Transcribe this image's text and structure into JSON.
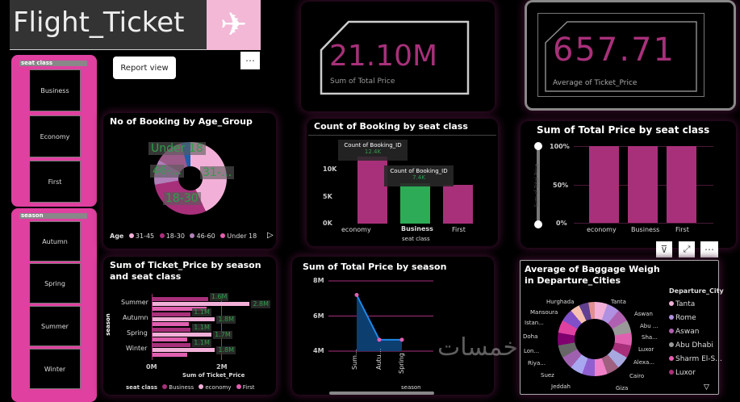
{
  "tooltip": "Report view",
  "title": "Flight_Ticket",
  "slicers": {
    "seat_class": {
      "header": "seat class",
      "items": [
        "Business",
        "Economy",
        "First"
      ]
    },
    "season": {
      "header": "season",
      "items": [
        "Autumn",
        "Spring",
        "Summer",
        "Winter"
      ]
    }
  },
  "kpis": [
    {
      "value": "21.10M",
      "label": "Sum of Total Price"
    },
    {
      "value": "657.71",
      "label": "Average of Ticket_Price"
    }
  ],
  "colors": {
    "accent": "#a8307a",
    "pink": "#e040a0",
    "green": "#2eab57"
  },
  "chart_data": [
    {
      "type": "pie",
      "title": "No of Booking by Age_Group",
      "legend_title": "Age",
      "categories": [
        "31-45",
        "18-30",
        "46-60",
        "Under 18"
      ],
      "values": [
        43,
        31,
        23,
        3
      ],
      "data_labels": [
        "31-...",
        "18-30",
        "46-...",
        "Under 18"
      ]
    },
    {
      "type": "bar",
      "title": "Count of Booking by seat class",
      "xlabel": "seat class",
      "categories": [
        "economy",
        "Business",
        "First"
      ],
      "values": [
        12.4,
        7.4,
        7.2
      ],
      "yticks": [
        "0K",
        "5K",
        "10K"
      ],
      "ylim": [
        0,
        13
      ],
      "tooltips": [
        {
          "title": "Count of Booking_ID",
          "value": "12.4K"
        },
        {
          "title": "Count of Booking_ID",
          "value": "7.4K"
        }
      ]
    },
    {
      "type": "bar",
      "title": "Sum of Total Price by seat class",
      "ylabel": "Sum of Total Price",
      "categories": [
        "economy",
        "Business",
        "First"
      ],
      "values": [
        100,
        100,
        100
      ],
      "yticks": [
        "0%",
        "50%",
        "100%"
      ],
      "ylim": [
        0,
        100
      ]
    },
    {
      "type": "bar",
      "title": "Sum of Ticket_Price by season and seat class",
      "xlabel": "Sum of Ticket_Price",
      "ylabel": "season",
      "legend_title": "seat class",
      "categories": [
        "Summer",
        "Autumn",
        "Spring",
        "Winter"
      ],
      "series": [
        {
          "name": "Business",
          "values": [
            1.6,
            1.1,
            1.1,
            1.1
          ],
          "labels": [
            "1.6M",
            "1.1M",
            "1.1M",
            "1.1M"
          ]
        },
        {
          "name": "economy",
          "values": [
            2.8,
            1.8,
            1.7,
            1.8
          ],
          "labels": [
            "2.8M",
            "1.8M",
            "1.7M",
            "1.8M"
          ]
        },
        {
          "name": "First",
          "values": [
            1.55,
            1.05,
            1.0,
            1.0
          ]
        }
      ],
      "xticks": [
        "0M",
        "2M"
      ],
      "xlim": [
        0,
        3.2
      ]
    },
    {
      "type": "area",
      "title": "Sum of Total Price by season",
      "xlabel": "season",
      "categories": [
        "Sum...",
        "Autu...",
        "Spring"
      ],
      "values": [
        7.2,
        4.65,
        4.65
      ],
      "yticks": [
        "4M",
        "6M",
        "8M"
      ],
      "ylim": [
        4,
        8
      ]
    },
    {
      "type": "pie",
      "title": "Average of Baggage Weigh in Departure_Cities",
      "legend_title": "Departure_City",
      "legend": [
        "Tanta",
        "Rome",
        "Aswan",
        "Abu Dhabi",
        "Sharm El-S...",
        "Luxor"
      ],
      "slice_labels": [
        "Tanta",
        "Aswan",
        "Abu ...",
        "Sha...",
        "Luxor",
        "Alexa...",
        "Cairo",
        "Giza",
        "Jeddah",
        "Suez",
        "Riya...",
        "Lon...",
        "Doha",
        "Istan...",
        "Mansoura",
        "Hurghada"
      ]
    }
  ],
  "watermark": "خمسات"
}
